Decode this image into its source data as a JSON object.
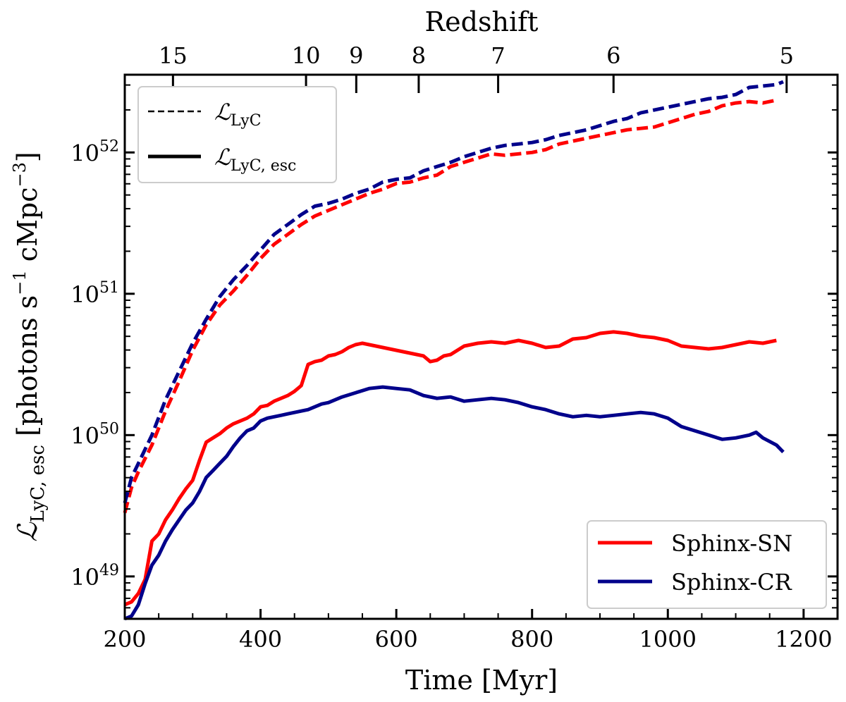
{
  "chart_data": {
    "type": "line",
    "title": "",
    "xlabel": "Time [Myr]",
    "ylabel": "L_LyC, esc [photons s^-1 cMpc^-3]",
    "ylabel_parts": {
      "symbol": "ℒ",
      "subscript": "LyC, esc",
      "unit_open": "[photons s",
      "unit_exp1": "−1",
      "unit_mid": " cMpc",
      "unit_exp2": "−3",
      "unit_close": "]"
    },
    "xlim": [
      200,
      1250
    ],
    "ylim_log10": [
      48.7,
      52.55
    ],
    "yscale": "log",
    "x_ticks": [
      200,
      400,
      600,
      800,
      1000,
      1200
    ],
    "x_tick_labels": [
      "200",
      "400",
      "600",
      "800",
      "1000",
      "1200"
    ],
    "y_ticks_log10": [
      49,
      50,
      51,
      52
    ],
    "y_tick_bases": [
      "10",
      "10",
      "10",
      "10"
    ],
    "y_tick_exponents": [
      "49",
      "50",
      "51",
      "52"
    ],
    "top_axis": {
      "label": "Redshift",
      "ticks": [
        {
          "label": "15",
          "time": 271
        },
        {
          "label": "10",
          "time": 467
        },
        {
          "label": "9",
          "time": 541
        },
        {
          "label": "8",
          "time": 633
        },
        {
          "label": "7",
          "time": 750
        },
        {
          "label": "6",
          "time": 920
        },
        {
          "label": "5",
          "time": 1175
        }
      ]
    },
    "line_styles": {
      "dashed": {
        "label_symbol": "ℒ",
        "label_sub": "LyC"
      },
      "solid": {
        "label_symbol": "ℒ",
        "label_sub": "LyC, esc"
      }
    },
    "series": [
      {
        "name": "Sphinx-SN",
        "color": "#ff0000",
        "style": "dashed",
        "quantity": "LyC",
        "x": [
          200,
          210,
          220,
          240,
          260,
          280,
          300,
          320,
          340,
          360,
          380,
          400,
          420,
          440,
          460,
          480,
          500,
          520,
          540,
          560,
          580,
          600,
          620,
          640,
          660,
          680,
          700,
          720,
          740,
          760,
          780,
          800,
          820,
          840,
          860,
          880,
          900,
          920,
          940,
          960,
          980,
          1000,
          1020,
          1040,
          1060,
          1080,
          1100,
          1120,
          1140,
          1160
        ],
        "y_log10": [
          49.45,
          49.63,
          49.74,
          49.93,
          50.17,
          50.38,
          50.6,
          50.78,
          50.92,
          51.02,
          51.13,
          51.25,
          51.35,
          51.42,
          51.49,
          51.55,
          51.59,
          51.63,
          51.67,
          51.71,
          51.74,
          51.78,
          51.79,
          51.82,
          51.84,
          51.9,
          51.93,
          51.96,
          51.99,
          51.98,
          51.99,
          52.0,
          52.02,
          52.06,
          52.08,
          52.1,
          52.12,
          52.14,
          52.16,
          52.17,
          52.18,
          52.21,
          52.24,
          52.27,
          52.29,
          52.33,
          52.35,
          52.36,
          52.35,
          52.37
        ]
      },
      {
        "name": "Sphinx-CR",
        "color": "#00008b",
        "style": "dashed",
        "quantity": "LyC",
        "x": [
          200,
          210,
          220,
          240,
          260,
          280,
          300,
          320,
          340,
          360,
          380,
          400,
          420,
          440,
          460,
          480,
          500,
          520,
          540,
          560,
          580,
          600,
          620,
          640,
          660,
          680,
          700,
          720,
          740,
          760,
          780,
          800,
          820,
          840,
          860,
          880,
          900,
          920,
          940,
          960,
          980,
          1000,
          1020,
          1040,
          1060,
          1080,
          1100,
          1120,
          1140,
          1160,
          1170
        ],
        "y_log10": [
          49.52,
          49.7,
          49.8,
          50.0,
          50.25,
          50.45,
          50.65,
          50.82,
          50.98,
          51.1,
          51.2,
          51.31,
          51.42,
          51.49,
          51.56,
          51.62,
          51.64,
          51.67,
          51.71,
          51.74,
          51.79,
          51.81,
          51.82,
          51.87,
          51.9,
          51.93,
          51.97,
          52.0,
          52.03,
          52.05,
          52.06,
          52.07,
          52.09,
          52.12,
          52.14,
          52.16,
          52.19,
          52.22,
          52.24,
          52.28,
          52.3,
          52.32,
          52.34,
          52.36,
          52.38,
          52.39,
          52.41,
          52.46,
          52.47,
          52.48,
          52.5
        ]
      },
      {
        "name": "Sphinx-SN",
        "color": "#ff0000",
        "style": "solid",
        "quantity": "LyC, esc",
        "x": [
          200,
          210,
          220,
          230,
          240,
          250,
          260,
          270,
          280,
          290,
          300,
          310,
          320,
          330,
          340,
          350,
          360,
          370,
          380,
          390,
          400,
          410,
          420,
          430,
          440,
          450,
          460,
          470,
          480,
          490,
          500,
          510,
          520,
          530,
          540,
          550,
          560,
          570,
          580,
          600,
          620,
          640,
          650,
          660,
          670,
          680,
          700,
          720,
          740,
          760,
          780,
          800,
          820,
          840,
          860,
          880,
          900,
          920,
          940,
          960,
          980,
          1000,
          1020,
          1040,
          1060,
          1080,
          1100,
          1120,
          1140,
          1160
        ],
        "y_log10": [
          48.8,
          48.82,
          48.88,
          48.98,
          49.25,
          49.3,
          49.4,
          49.47,
          49.55,
          49.62,
          49.68,
          49.82,
          49.95,
          49.98,
          50.01,
          50.05,
          50.08,
          50.1,
          50.12,
          50.15,
          50.2,
          50.21,
          50.24,
          50.26,
          50.28,
          50.31,
          50.35,
          50.5,
          50.52,
          50.53,
          50.56,
          50.57,
          50.59,
          50.62,
          50.64,
          50.65,
          50.64,
          50.63,
          50.62,
          50.6,
          50.58,
          50.56,
          50.52,
          50.53,
          50.56,
          50.57,
          50.63,
          50.65,
          50.66,
          50.65,
          50.67,
          50.65,
          50.62,
          50.63,
          50.68,
          50.69,
          50.72,
          50.73,
          50.72,
          50.7,
          50.69,
          50.67,
          50.63,
          50.62,
          50.61,
          50.62,
          50.64,
          50.66,
          50.65,
          50.67
        ]
      },
      {
        "name": "Sphinx-CR",
        "color": "#00008b",
        "style": "solid",
        "quantity": "LyC, esc",
        "x": [
          200,
          210,
          220,
          230,
          240,
          250,
          260,
          270,
          280,
          290,
          300,
          310,
          320,
          330,
          340,
          350,
          360,
          370,
          380,
          390,
          400,
          410,
          420,
          430,
          440,
          450,
          460,
          470,
          480,
          490,
          500,
          520,
          540,
          560,
          580,
          600,
          620,
          640,
          660,
          680,
          700,
          720,
          740,
          760,
          780,
          800,
          820,
          840,
          860,
          880,
          900,
          920,
          940,
          960,
          980,
          1000,
          1020,
          1040,
          1060,
          1080,
          1100,
          1120,
          1130,
          1140,
          1160,
          1170
        ],
        "y_log10": [
          48.7,
          48.72,
          48.8,
          48.95,
          49.08,
          49.15,
          49.25,
          49.33,
          49.4,
          49.47,
          49.52,
          49.6,
          49.7,
          49.75,
          49.8,
          49.85,
          49.92,
          49.98,
          50.03,
          50.05,
          50.1,
          50.12,
          50.13,
          50.14,
          50.15,
          50.16,
          50.17,
          50.18,
          50.2,
          50.22,
          50.23,
          50.27,
          50.3,
          50.33,
          50.34,
          50.33,
          50.32,
          50.28,
          50.26,
          50.27,
          50.24,
          50.25,
          50.26,
          50.25,
          50.23,
          50.2,
          50.18,
          50.15,
          50.13,
          50.14,
          50.13,
          50.14,
          50.15,
          50.16,
          50.15,
          50.12,
          50.06,
          50.03,
          50.0,
          49.97,
          49.98,
          50.0,
          50.02,
          49.98,
          49.93,
          49.88
        ]
      }
    ],
    "legends": [
      {
        "position": "top-left",
        "entries": [
          "ℒ_LyC (dashed)",
          "ℒ_LyC, esc (solid)"
        ]
      },
      {
        "position": "bottom-right",
        "entries": [
          "Sphinx-SN",
          "Sphinx-CR"
        ]
      }
    ]
  }
}
